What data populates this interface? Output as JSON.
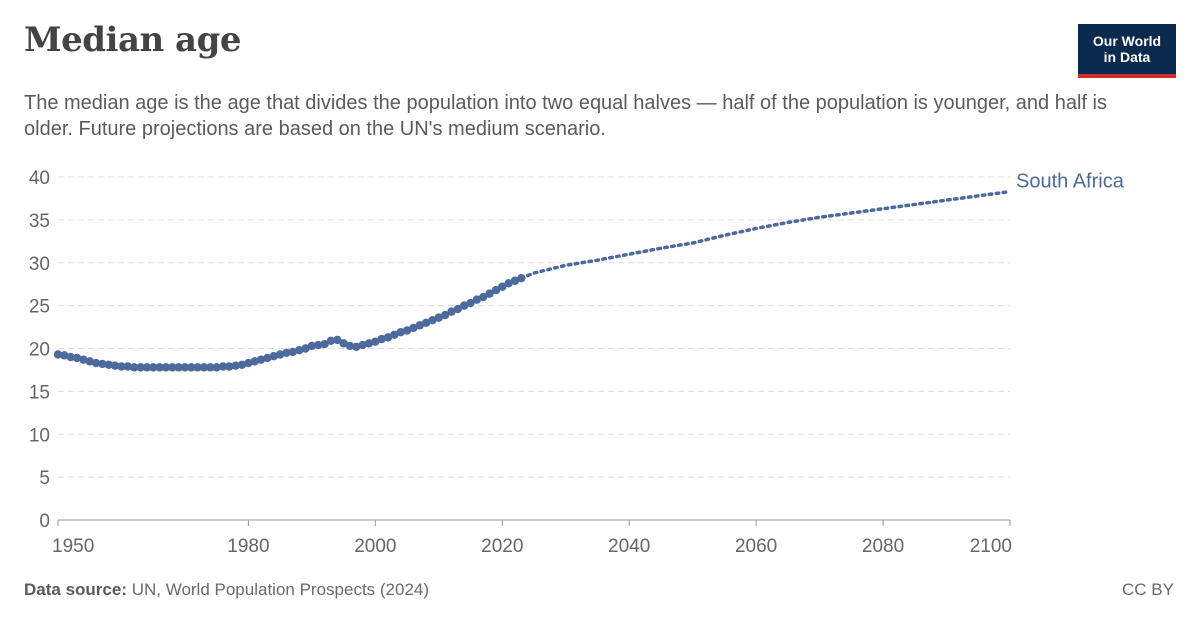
{
  "header": {
    "title": "Median age",
    "subtitle": "The median age is the age that divides the population into two equal halves — half of the population is younger, and half is older. Future projections are based on the UN's medium scenario.",
    "logo_line1": "Our World",
    "logo_line2": "in Data"
  },
  "footer": {
    "source_label": "Data source:",
    "source_text": " UN, World Population Prospects (2024)",
    "license": "CC BY"
  },
  "colors": {
    "series": "#4c6a9c",
    "grid": "#dddddd",
    "axis_text": "#666666",
    "logo_bg": "#0b2a4f",
    "logo_accent": "#cf2c2c"
  },
  "chart_data": {
    "type": "line",
    "title": "Median age",
    "xlim": [
      1950,
      2100
    ],
    "ylim": [
      0,
      40
    ],
    "x_ticks": [
      1950,
      1980,
      2000,
      2020,
      2040,
      2060,
      2080,
      2100
    ],
    "y_ticks": [
      0,
      5,
      10,
      15,
      20,
      25,
      30,
      35,
      40
    ],
    "grid": "horizontal dashed",
    "series": [
      {
        "name": "South Africa",
        "estimates": {
          "x": [
            1950,
            1951,
            1952,
            1953,
            1954,
            1955,
            1956,
            1957,
            1958,
            1959,
            1960,
            1961,
            1962,
            1963,
            1964,
            1965,
            1966,
            1967,
            1968,
            1969,
            1970,
            1971,
            1972,
            1973,
            1974,
            1975,
            1976,
            1977,
            1978,
            1979,
            1980,
            1981,
            1982,
            1983,
            1984,
            1985,
            1986,
            1987,
            1988,
            1989,
            1990,
            1991,
            1992,
            1993,
            1994,
            1995,
            1996,
            1997,
            1998,
            1999,
            2000,
            2001,
            2002,
            2003,
            2004,
            2005,
            2006,
            2007,
            2008,
            2009,
            2010,
            2011,
            2012,
            2013,
            2014,
            2015,
            2016,
            2017,
            2018,
            2019,
            2020,
            2021,
            2022,
            2023
          ],
          "y": [
            19.3,
            19.2,
            19.0,
            18.9,
            18.7,
            18.5,
            18.3,
            18.2,
            18.1,
            18.0,
            17.9,
            17.9,
            17.8,
            17.8,
            17.8,
            17.8,
            17.8,
            17.8,
            17.8,
            17.8,
            17.8,
            17.8,
            17.8,
            17.8,
            17.8,
            17.8,
            17.9,
            17.9,
            18.0,
            18.1,
            18.3,
            18.5,
            18.7,
            18.9,
            19.1,
            19.3,
            19.5,
            19.6,
            19.8,
            20.0,
            20.3,
            20.4,
            20.5,
            20.9,
            21.0,
            20.6,
            20.3,
            20.2,
            20.4,
            20.6,
            20.8,
            21.1,
            21.3,
            21.6,
            21.9,
            22.1,
            22.4,
            22.7,
            23.0,
            23.3,
            23.6,
            23.9,
            24.3,
            24.6,
            25.0,
            25.3,
            25.7,
            26.0,
            26.4,
            26.8,
            27.2,
            27.6,
            27.9,
            28.2
          ]
        },
        "projections": {
          "x": [
            2023,
            2025,
            2030,
            2035,
            2040,
            2045,
            2050,
            2055,
            2060,
            2065,
            2070,
            2075,
            2080,
            2085,
            2090,
            2095,
            2100
          ],
          "y": [
            28.2,
            28.8,
            29.7,
            30.3,
            31.0,
            31.7,
            32.3,
            33.2,
            34.0,
            34.7,
            35.3,
            35.8,
            36.3,
            36.8,
            37.3,
            37.8,
            38.3
          ]
        }
      }
    ]
  }
}
